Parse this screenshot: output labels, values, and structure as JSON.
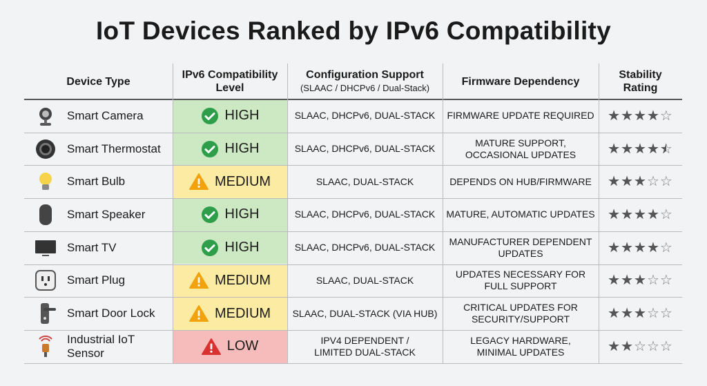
{
  "title": "IoT Devices Ranked by IPv6 Compatibility",
  "headers": {
    "device": [
      "Device Type"
    ],
    "level": [
      "IPv6 Compatibility",
      "Level"
    ],
    "config": [
      "Configuration Support"
    ],
    "config_sub": "(SLAAC / DHCPv6 / Dual-Stack)",
    "firmware": [
      "Firmware Dependency"
    ],
    "rating": [
      "Stability",
      "Rating"
    ]
  },
  "rows": [
    {
      "device": "Smart Camera",
      "level": {
        "text": "HIGH",
        "color": "#cde9c3",
        "icon": "check"
      },
      "config": [
        "SLAAC, DHCPv6, DUAL-STACK"
      ],
      "firmware": [
        "FIRMWARE UPDATE REQUIRED"
      ],
      "rating": 4
    },
    {
      "device": "Smart Thermostat",
      "level": {
        "text": "HIGH",
        "color": "#cde9c3",
        "icon": "check"
      },
      "config": [
        "SLAAC, DHCPv6, DUAL-STACK"
      ],
      "firmware": [
        "MATURE SUPPORT,",
        "OCCASIONAL UPDATES"
      ],
      "rating": 4.5
    },
    {
      "device": "Smart Bulb",
      "level": {
        "text": "MEDIUM",
        "color": "#fbeba3",
        "icon": "warn"
      },
      "config": [
        "SLAAC, DUAL-STACK"
      ],
      "firmware": [
        "DEPENDS ON HUB/FIRMWARE"
      ],
      "rating": 3
    },
    {
      "device": "Smart Speaker",
      "level": {
        "text": "HIGH",
        "color": "#cde9c3",
        "icon": "check"
      },
      "config": [
        "SLAAC, DHCPv6, DUAL-STACK"
      ],
      "firmware": [
        "MATURE, AUTOMATIC UPDATES"
      ],
      "rating": 4
    },
    {
      "device": "Smart TV",
      "level": {
        "text": "HIGH",
        "color": "#cde9c3",
        "icon": "check"
      },
      "config": [
        "SLAAC, DHCPv6, DUAL-STACK"
      ],
      "firmware": [
        "MANUFACTURER DEPENDENT",
        "UPDATES"
      ],
      "rating": 4
    },
    {
      "device": "Smart Plug",
      "level": {
        "text": "MEDIUM",
        "color": "#fbeba3",
        "icon": "warn"
      },
      "config": [
        "SLAAC, DUAL-STACK"
      ],
      "firmware": [
        "UPDATES NECESSARY FOR",
        "FULL SUPPORT"
      ],
      "rating": 3
    },
    {
      "device": "Smart Door Lock",
      "level": {
        "text": "MEDIUM",
        "color": "#fbeba3",
        "icon": "warn"
      },
      "config": [
        "SLAAC, DUAL-STACK (VIA HUB)"
      ],
      "firmware": [
        "CRITICAL UPDATES FOR",
        "SECURITY/SUPPORT"
      ],
      "rating": 3
    },
    {
      "device": "Industrial IoT Sensor",
      "level": {
        "text": "LOW",
        "color": "#f6bcbc",
        "icon": "danger"
      },
      "config": [
        "IPV4 DEPENDENT /",
        "LIMITED DUAL-STACK"
      ],
      "firmware": [
        "LEGACY HARDWARE,",
        "MINIMAL UPDATES"
      ],
      "rating": 2
    }
  ],
  "rating_max": 5
}
